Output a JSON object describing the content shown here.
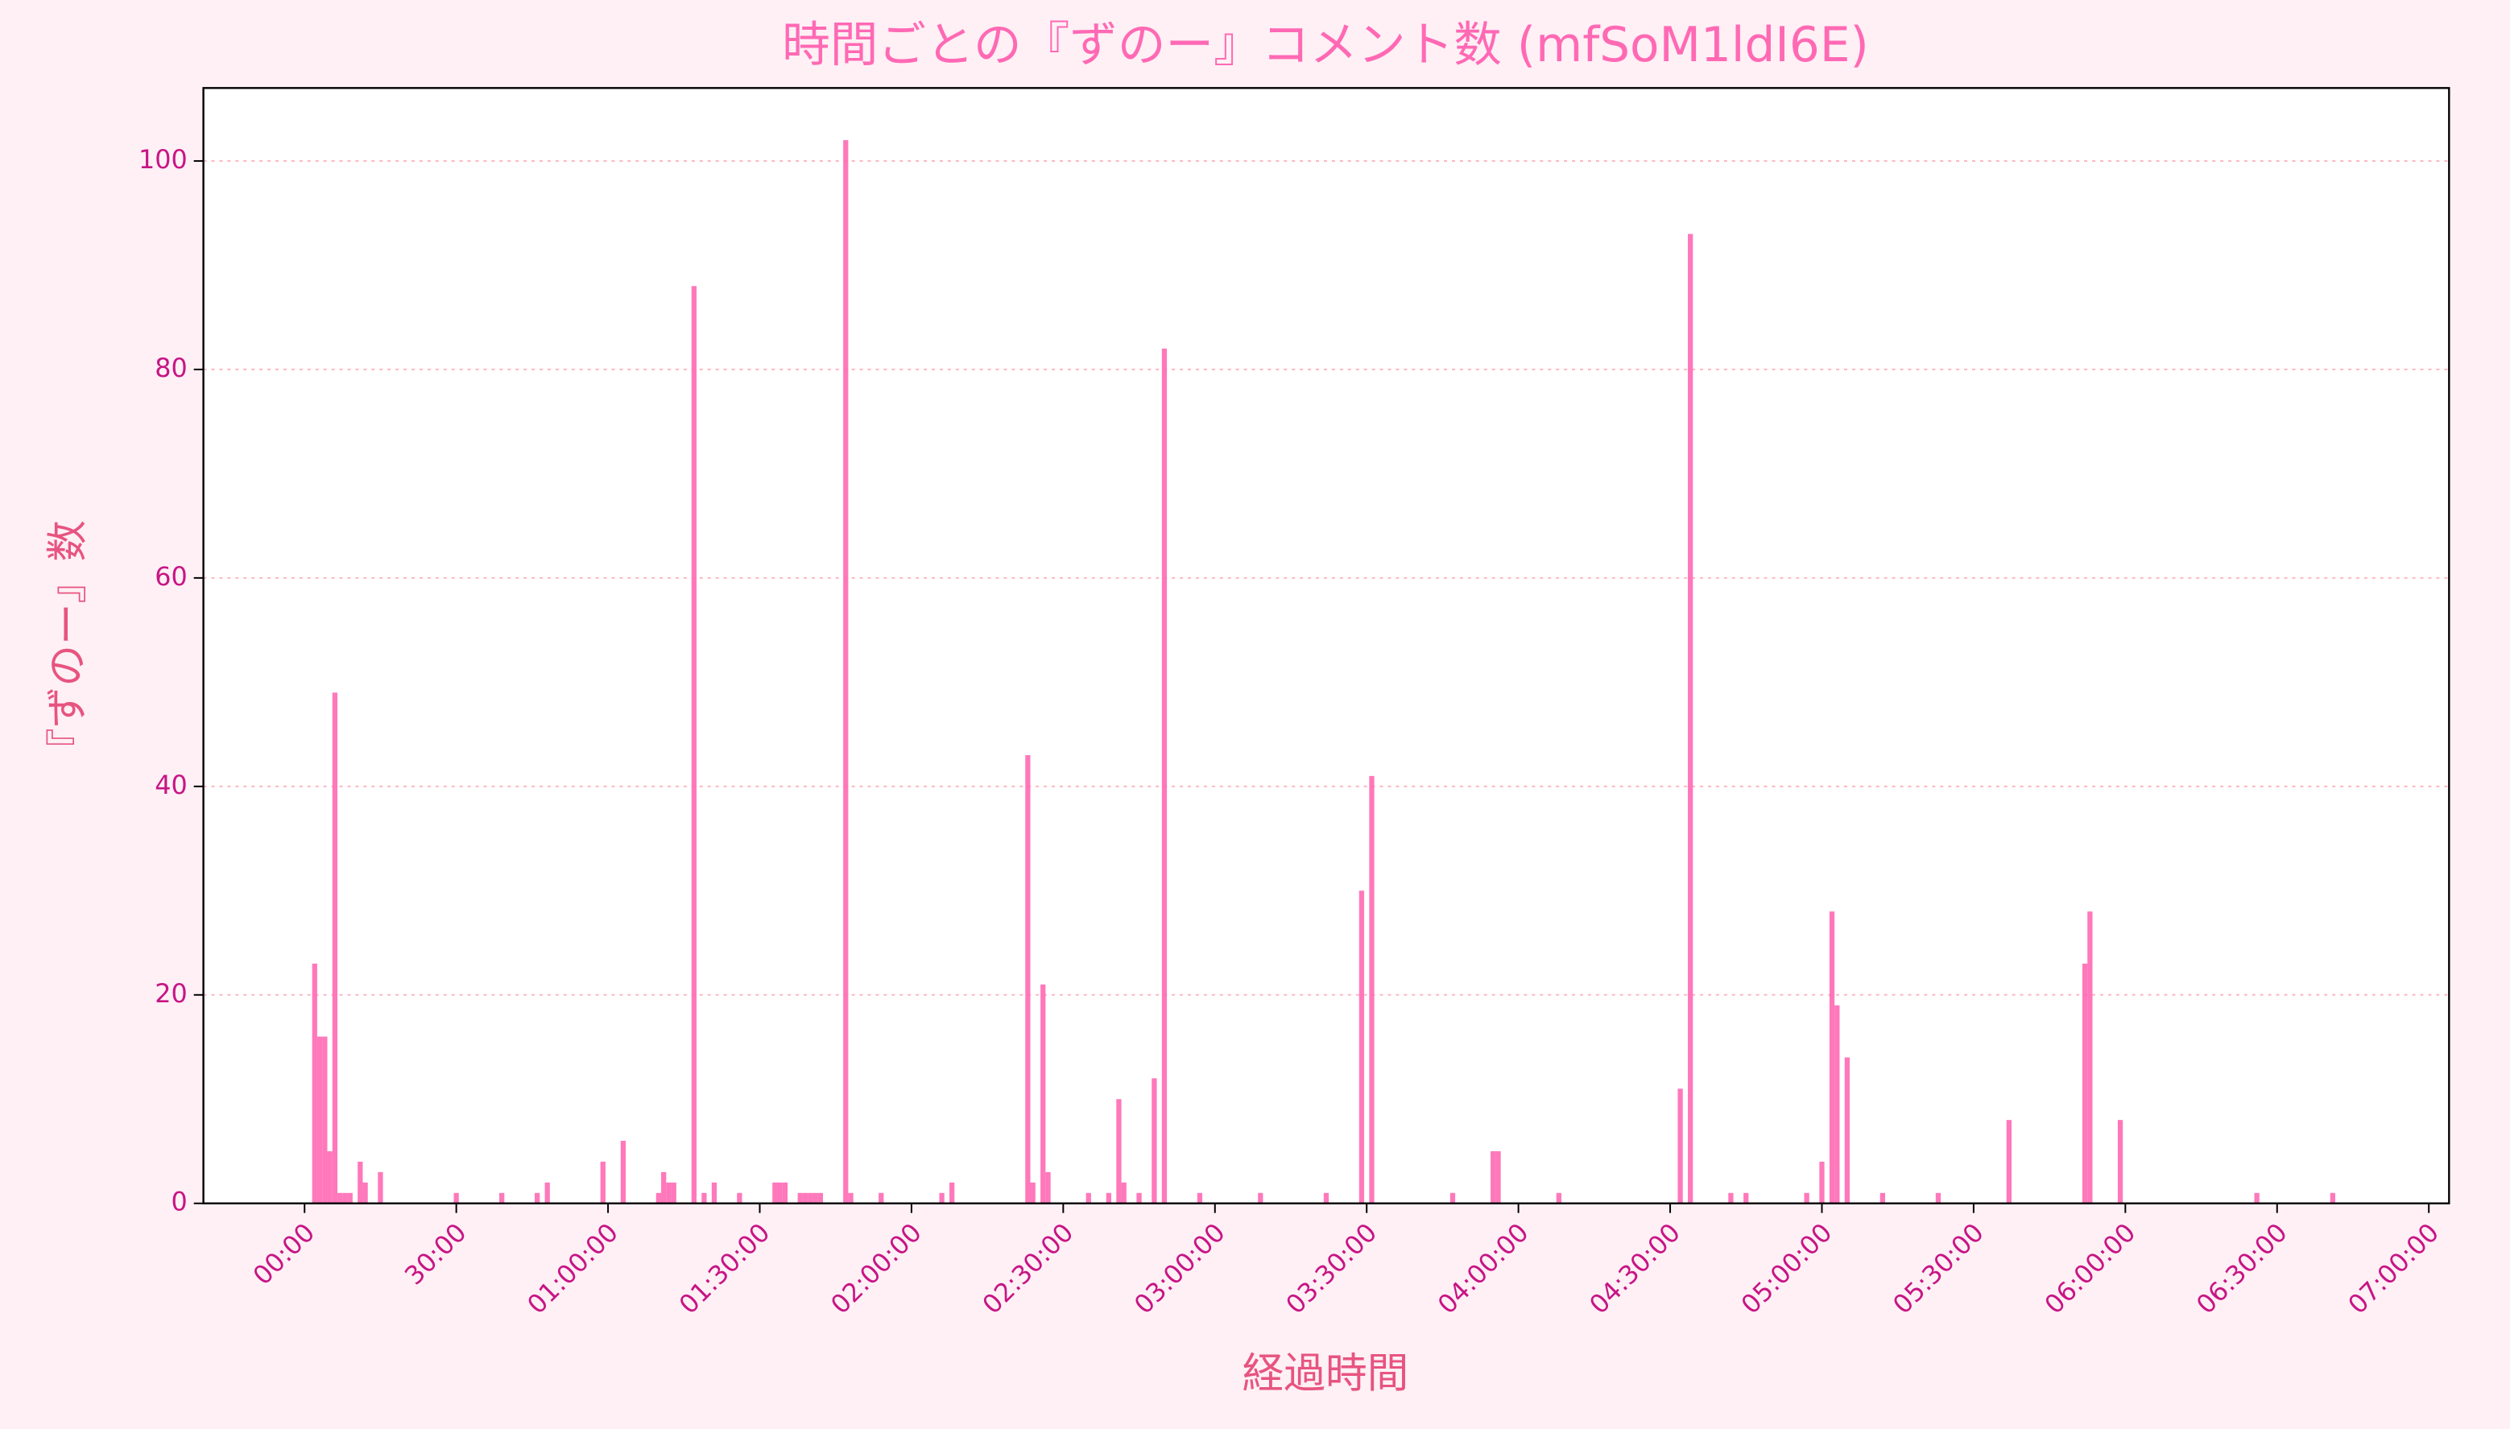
{
  "chart_data": {
    "type": "bar",
    "title": "時間ごとの『ずのー』コメント数 (mfSoM1ldI6E)",
    "x_label": "経過時間",
    "y_label": "『ずのー』数",
    "color": "#ff69b4",
    "grid": true,
    "x": [
      2,
      3,
      4,
      5,
      6,
      7,
      8,
      9,
      11,
      12,
      15,
      30,
      39,
      46,
      48,
      59,
      63,
      70,
      71,
      72,
      73,
      77,
      79,
      81,
      86,
      93,
      94,
      95,
      98,
      99,
      100,
      101,
      102,
      107,
      108,
      114,
      126,
      128,
      143,
      144,
      146,
      147,
      155,
      159,
      161,
      162,
      165,
      168,
      170,
      177,
      189,
      202,
      209,
      211,
      227,
      235,
      236,
      248,
      272,
      274,
      282,
      285,
      297,
      300,
      302,
      303,
      305,
      312,
      323,
      337,
      352,
      353,
      359,
      386,
      401
    ],
    "values": [
      23,
      16,
      16,
      5,
      49,
      1,
      1,
      1,
      4,
      2,
      3,
      1,
      1,
      1,
      2,
      4,
      6,
      1,
      3,
      2,
      2,
      88,
      1,
      2,
      1,
      2,
      2,
      2,
      1,
      1,
      1,
      1,
      1,
      102,
      1,
      1,
      1,
      2,
      43,
      2,
      21,
      3,
      1,
      1,
      10,
      2,
      1,
      12,
      82,
      1,
      1,
      1,
      30,
      41,
      1,
      5,
      5,
      1,
      11,
      93,
      1,
      1,
      1,
      4,
      28,
      19,
      14,
      1,
      1,
      8,
      23,
      28,
      8,
      1,
      1
    ],
    "xlim": [
      -20,
      424
    ],
    "ylim": [
      0,
      107
    ],
    "xticks": [
      {
        "value": 0,
        "label": "00:00"
      },
      {
        "value": 30,
        "label": "30:00"
      },
      {
        "value": 60,
        "label": "01:00:00"
      },
      {
        "value": 90,
        "label": "01:30:00"
      },
      {
        "value": 120,
        "label": "02:00:00"
      },
      {
        "value": 150,
        "label": "02:30:00"
      },
      {
        "value": 180,
        "label": "03:00:00"
      },
      {
        "value": 210,
        "label": "03:30:00"
      },
      {
        "value": 240,
        "label": "04:00:00"
      },
      {
        "value": 270,
        "label": "04:30:00"
      },
      {
        "value": 300,
        "label": "05:00:00"
      },
      {
        "value": 330,
        "label": "05:30:00"
      },
      {
        "value": 360,
        "label": "06:00:00"
      },
      {
        "value": 390,
        "label": "06:30:00"
      },
      {
        "value": 420,
        "label": "07:00:00"
      }
    ],
    "yticks": [
      0,
      20,
      40,
      60,
      80,
      100
    ]
  }
}
